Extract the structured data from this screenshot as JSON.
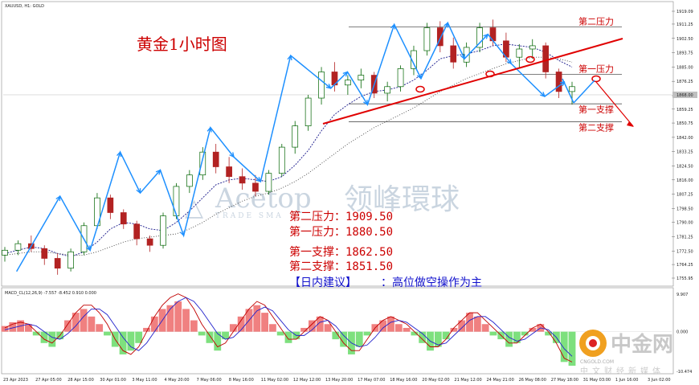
{
  "header": {
    "symbol_line": "XAUUSD, H1: GOLD"
  },
  "chart_data": {
    "type": "candlestick",
    "title": "黄金1小时图",
    "ylim": [
      1755.95,
      1919.09
    ],
    "y_ticks": [
      "1919.09",
      "1911.25",
      "1902.50",
      "1893.75",
      "1885.00",
      "1876.25",
      "1867.50",
      "1859.25",
      "1850.75",
      "1842.00",
      "1833.25",
      "1824.50",
      "1816.00",
      "1807.25",
      "1798.50",
      "1790.00",
      "1781.25",
      "1772.50",
      "1764.25",
      "1755.95"
    ],
    "current_price_label": "1868.00",
    "x_labels": [
      "23 Apr 2023",
      "27 Apr 05:00",
      "28 Apr 15:00",
      "30 Apr 01:00",
      "3 May 11:00",
      "4 May 20:00",
      "7 May 06:00",
      "8 May 16:00",
      "11 May 02:00",
      "12 May 12:00",
      "13 May 20:00",
      "17 May 07:00",
      "18 May 16:00",
      "20 May 02:00",
      "21 May 12:00",
      "24 May 21:00",
      "26 May 08:00",
      "27 May 18:00",
      "31 May 03:00",
      "1 Jun 16:00",
      "3 Jun 02:00"
    ],
    "levels": [
      {
        "label": "第二压力",
        "value": 1909.5
      },
      {
        "label": "第一压力",
        "value": 1880.5
      },
      {
        "label": "第一支撑",
        "value": 1862.5
      },
      {
        "label": "第二支撑",
        "value": 1851.5
      }
    ],
    "wave_path": [
      [
        0.02,
        1760
      ],
      [
        0.085,
        1806
      ],
      [
        0.13,
        1773
      ],
      [
        0.175,
        1833
      ],
      [
        0.205,
        1808
      ],
      [
        0.235,
        1822
      ],
      [
        0.27,
        1782
      ],
      [
        0.31,
        1848
      ],
      [
        0.345,
        1830
      ],
      [
        0.385,
        1815
      ],
      [
        0.43,
        1892
      ],
      [
        0.49,
        1872
      ],
      [
        0.515,
        1882
      ],
      [
        0.545,
        1862
      ],
      [
        0.585,
        1911
      ],
      [
        0.625,
        1878
      ],
      [
        0.665,
        1912
      ],
      [
        0.69,
        1890
      ],
      [
        0.725,
        1905
      ],
      [
        0.76,
        1887
      ],
      [
        0.81,
        1867
      ],
      [
        0.84,
        1876
      ]
    ],
    "candles": [
      [
        1770,
        1775,
        1766,
        1773
      ],
      [
        1773,
        1779,
        1770,
        1777
      ],
      [
        1777,
        1782,
        1772,
        1774
      ],
      [
        1774,
        1776,
        1764,
        1768
      ],
      [
        1768,
        1771,
        1758,
        1762
      ],
      [
        1762,
        1774,
        1760,
        1772
      ],
      [
        1772,
        1790,
        1770,
        1788
      ],
      [
        1788,
        1808,
        1786,
        1805
      ],
      [
        1805,
        1807,
        1792,
        1796
      ],
      [
        1796,
        1798,
        1786,
        1789
      ],
      [
        1789,
        1791,
        1776,
        1780
      ],
      [
        1780,
        1782,
        1772,
        1776
      ],
      [
        1776,
        1796,
        1774,
        1794
      ],
      [
        1794,
        1814,
        1792,
        1812
      ],
      [
        1812,
        1822,
        1808,
        1819
      ],
      [
        1819,
        1836,
        1816,
        1833
      ],
      [
        1833,
        1838,
        1820,
        1824
      ],
      [
        1824,
        1830,
        1814,
        1818
      ],
      [
        1818,
        1823,
        1810,
        1814
      ],
      [
        1814,
        1819,
        1806,
        1809
      ],
      [
        1809,
        1822,
        1807,
        1820
      ],
      [
        1820,
        1838,
        1818,
        1836
      ],
      [
        1836,
        1852,
        1832,
        1849
      ],
      [
        1849,
        1868,
        1846,
        1866
      ],
      [
        1866,
        1885,
        1862,
        1882
      ],
      [
        1882,
        1888,
        1870,
        1874
      ],
      [
        1874,
        1880,
        1868,
        1877
      ],
      [
        1877,
        1884,
        1872,
        1880
      ],
      [
        1880,
        1882,
        1866,
        1869
      ],
      [
        1869,
        1876,
        1864,
        1873
      ],
      [
        1873,
        1886,
        1870,
        1884
      ],
      [
        1884,
        1898,
        1880,
        1895
      ],
      [
        1895,
        1912,
        1892,
        1909
      ],
      [
        1909,
        1913,
        1894,
        1898
      ],
      [
        1898,
        1903,
        1884,
        1888
      ],
      [
        1888,
        1900,
        1885,
        1897
      ],
      [
        1897,
        1912,
        1894,
        1909
      ],
      [
        1909,
        1914,
        1898,
        1901
      ],
      [
        1901,
        1906,
        1888,
        1891
      ],
      [
        1891,
        1899,
        1884,
        1896
      ],
      [
        1896,
        1902,
        1890,
        1898
      ],
      [
        1898,
        1900,
        1878,
        1882
      ],
      [
        1882,
        1884,
        1866,
        1870
      ],
      [
        1870,
        1876,
        1862,
        1873
      ]
    ],
    "ma_fast": [
      1771,
      1773,
      1775,
      1774,
      1771,
      1769,
      1772,
      1778,
      1786,
      1790,
      1789,
      1786,
      1785,
      1790,
      1797,
      1805,
      1813,
      1816,
      1817,
      1816,
      1815,
      1818,
      1825,
      1834,
      1846,
      1856,
      1862,
      1867,
      1870,
      1871,
      1873,
      1877,
      1883,
      1890,
      1892,
      1893,
      1895,
      1898,
      1899,
      1898,
      1897,
      1894,
      1889,
      1885
    ],
    "ma_slow": [
      1770,
      1771,
      1772,
      1772,
      1771,
      1770,
      1770,
      1772,
      1775,
      1778,
      1780,
      1781,
      1782,
      1783,
      1786,
      1790,
      1795,
      1799,
      1803,
      1806,
      1808,
      1811,
      1815,
      1820,
      1826,
      1832,
      1838,
      1843,
      1848,
      1852,
      1856,
      1860,
      1865,
      1870,
      1874,
      1878,
      1881,
      1884,
      1887,
      1889,
      1891,
      1891,
      1890,
      1888
    ],
    "macd": {
      "label": "MACD_CL(12,26,9) -7.557 -8.452 0.910 0.000",
      "y_ticks": [
        "9.907",
        "0.000",
        "-10.474"
      ],
      "histogram": [
        1.5,
        2.5,
        3,
        2,
        -1,
        -3,
        -4,
        -2,
        3,
        5,
        6,
        4,
        2,
        -1,
        -4,
        -6,
        -5,
        -3,
        1,
        4,
        6,
        7,
        8,
        6,
        3,
        -1,
        -3,
        -5,
        -2,
        2,
        4,
        6,
        7,
        5,
        2,
        -1,
        -3,
        -2,
        1,
        3,
        4,
        2,
        -2,
        -4,
        -6,
        -4,
        -1,
        2,
        3,
        4,
        2,
        1,
        -1,
        -3,
        -5,
        -4,
        -2,
        1,
        3,
        5,
        4,
        2,
        -1,
        -2,
        -4,
        -3,
        -1,
        1,
        2,
        -1,
        -3,
        -8,
        -9
      ],
      "macd_line": [
        1,
        2,
        2.5,
        2,
        0,
        -2,
        -3,
        -1,
        2,
        5,
        7,
        7,
        5,
        2,
        -2,
        -5,
        -6,
        -4,
        0,
        4,
        7,
        9,
        10,
        9,
        6,
        2,
        -1,
        -4,
        -3,
        0,
        3,
        6,
        8,
        7,
        4,
        1,
        -2,
        -2,
        0,
        2,
        4,
        3,
        0,
        -3,
        -5,
        -5,
        -2,
        1,
        3,
        4,
        3,
        2,
        0,
        -2,
        -4,
        -4,
        -2,
        1,
        3,
        5,
        5,
        3,
        1,
        -1,
        -3,
        -3,
        -1,
        1,
        2,
        0,
        -3,
        -7,
        -8
      ],
      "signal_line": [
        0.5,
        1,
        1.5,
        2,
        1.5,
        0,
        -1.5,
        -2,
        -0.5,
        1.5,
        4,
        6,
        6,
        4.5,
        1.5,
        -1.5,
        -4,
        -5,
        -3,
        0,
        3,
        6,
        8,
        9,
        8,
        5.5,
        2.5,
        -0.5,
        -2,
        -1.5,
        0.5,
        3,
        5.5,
        6.5,
        5.5,
        3,
        0.5,
        -1,
        -1,
        0.5,
        2.5,
        3,
        1.5,
        -1,
        -3,
        -4,
        -3.5,
        -1.5,
        1,
        2.5,
        3,
        2.5,
        1,
        -0.5,
        -2.5,
        -3.5,
        -3,
        -1,
        1,
        3,
        4,
        4,
        2.5,
        0.5,
        -1.5,
        -2.5,
        -2,
        -0.5,
        1,
        0.5,
        -1.5,
        -4.5,
        -6.5
      ]
    }
  },
  "summary": {
    "lines": [
      "第二压力：1909.50",
      "第一压力：1880.50",
      "第一支撑：1862.50",
      "第二支撑：1851.50"
    ],
    "advice_label": "【日内建议】",
    "advice_text": "：高位做空操作为主"
  },
  "watermarks": {
    "acetop": "Acetop",
    "acetop_cn": "领峰環球",
    "tagline": "TRADE SMA",
    "cngold_cn": "中金网",
    "cngold_url": "CNGOLD.COM",
    "cngold_sub": "中文财经新媒体"
  },
  "colors": {
    "bull": "#006400",
    "bear": "#b22222",
    "wave": "#1e90ff",
    "trend": "#e00000",
    "level": "#555555"
  }
}
